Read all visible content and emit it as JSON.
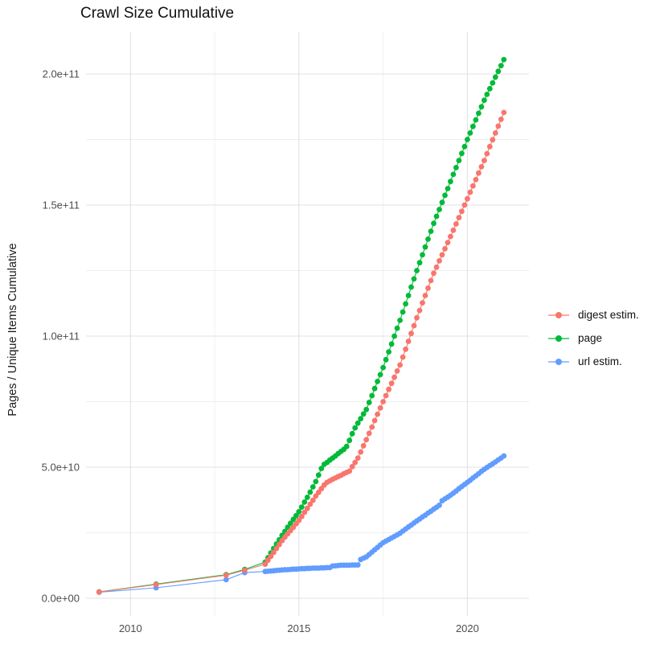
{
  "title": "Crawl Size Cumulative",
  "axes": {
    "x": {
      "tick_labels": [
        "2010",
        "2015",
        "2020"
      ],
      "tick_values": [
        2010,
        2015,
        2020
      ],
      "minor_tick_values": [
        2012.5,
        2017.5
      ]
    },
    "y": {
      "label": "Pages / Unique Items Cumulative",
      "tick_labels": [
        "0.0e+00",
        "5.0e+10",
        "1.0e+11",
        "1.5e+11",
        "2.0e+11"
      ],
      "tick_values_e9": [
        0,
        50,
        100,
        150,
        200
      ],
      "minor_tick_values_e9": [
        25,
        75,
        125,
        175
      ]
    }
  },
  "legend": {
    "items": [
      {
        "label": "digest estim.",
        "color": "#F8766D"
      },
      {
        "label": "page",
        "color": "#00BA38"
      },
      {
        "label": "url estim.",
        "color": "#619CFF"
      }
    ]
  },
  "chart_data": {
    "type": "line",
    "title": "Crawl Size Cumulative",
    "xlabel": "",
    "ylabel": "Pages / Unique Items Cumulative",
    "value_unit": "billions (1e9) of pages / unique items",
    "x_range_years": [
      2009.07,
      2021.08
    ],
    "y_range_e9": [
      0,
      205.5
    ],
    "grid": true,
    "legend_position": "right",
    "series": [
      {
        "name": "digest estim.",
        "color": "#F8766D",
        "sparse_points": [
          [
            2009.07,
            2.4
          ],
          [
            2010.76,
            5.2
          ],
          [
            2012.84,
            8.8
          ],
          [
            2013.39,
            10.7
          ]
        ],
        "monthly": {
          "start_year": 2014.0,
          "step_years": 0.083333,
          "values_e9": [
            13.0,
            14.5,
            16.0,
            17.5,
            19.0,
            20.5,
            22.0,
            23.3,
            24.6,
            25.8,
            27.1,
            28.4,
            29.7,
            31.2,
            32.8,
            34.3,
            35.9,
            37.4,
            39.0,
            40.4,
            41.8,
            43.2,
            44.2,
            44.8,
            45.4,
            45.9,
            46.4,
            46.9,
            47.5,
            48.0,
            48.5,
            50.2,
            51.8,
            53.5,
            55.8,
            58.2,
            60.5,
            62.9,
            65.3,
            67.8,
            70.2,
            72.6,
            75.0,
            77.3,
            79.7,
            82.0,
            84.3,
            86.7,
            89.0,
            92.0,
            95.0,
            98.0,
            101.0,
            104.0,
            107.0,
            109.8,
            112.7,
            115.5,
            118.3,
            121.2,
            124.0,
            126.3,
            128.7,
            131.0,
            133.3,
            135.7,
            138.0,
            140.4,
            142.8,
            145.2,
            147.6,
            150.0,
            152.4,
            154.9,
            157.3,
            159.7,
            162.2,
            164.6,
            167.0,
            169.6,
            172.3,
            174.9,
            177.5,
            180.1,
            182.7,
            185.3
          ]
        }
      },
      {
        "name": "page",
        "color": "#00BA38",
        "sparse_points": [
          [
            2009.07,
            2.45
          ],
          [
            2010.76,
            5.4
          ],
          [
            2012.84,
            9.0
          ],
          [
            2013.39,
            11.0
          ]
        ],
        "monthly": {
          "start_year": 2014.0,
          "step_years": 0.083333,
          "values_e9": [
            13.8,
            15.5,
            17.3,
            19.0,
            20.7,
            22.3,
            24.0,
            25.5,
            27.1,
            28.6,
            30.1,
            31.5,
            33.0,
            34.8,
            36.7,
            38.5,
            40.5,
            42.5,
            44.5,
            47.0,
            49.5,
            51.1,
            51.8,
            52.7,
            53.5,
            54.3,
            55.2,
            56.0,
            56.8,
            57.9,
            60.2,
            62.8,
            65.0,
            66.8,
            68.5,
            70.3,
            72.0,
            74.7,
            77.3,
            80.0,
            82.7,
            85.3,
            88.0,
            91.0,
            94.0,
            97.0,
            100.0,
            103.0,
            106.0,
            109.2,
            112.3,
            115.5,
            118.7,
            121.8,
            125.0,
            128.0,
            131.0,
            134.0,
            137.0,
            140.0,
            143.0,
            145.7,
            148.3,
            151.0,
            153.7,
            156.3,
            159.0,
            161.7,
            164.3,
            167.0,
            169.7,
            172.3,
            175.0,
            177.5,
            180.0,
            182.5,
            185.0,
            187.5,
            190.0,
            192.2,
            194.4,
            196.6,
            198.8,
            201.0,
            203.2,
            205.5
          ]
        }
      },
      {
        "name": "url estim.",
        "color": "#619CFF",
        "sparse_points": [
          [
            2009.07,
            2.3
          ],
          [
            2010.76,
            4.0
          ],
          [
            2012.84,
            7.1
          ],
          [
            2013.39,
            9.8
          ]
        ],
        "monthly": {
          "start_year": 2014.0,
          "step_years": 0.083333,
          "values_e9": [
            10.2,
            10.3,
            10.4,
            10.5,
            10.6,
            10.7,
            10.8,
            10.9,
            10.9,
            11.0,
            11.1,
            11.1,
            11.2,
            11.3,
            11.3,
            11.4,
            11.4,
            11.5,
            11.5,
            11.5,
            11.6,
            11.6,
            11.7,
            11.7,
            12.3,
            12.4,
            12.5,
            12.6,
            12.6,
            12.6,
            12.6,
            12.7,
            12.7,
            12.7,
            14.8,
            15.3,
            15.8,
            16.7,
            17.6,
            18.5,
            19.4,
            20.3,
            21.2,
            21.8,
            22.4,
            23.0,
            23.6,
            24.2,
            24.8,
            25.6,
            26.4,
            27.2,
            27.9,
            28.7,
            29.5,
            30.2,
            31.0,
            31.7,
            32.5,
            33.2,
            34.0,
            34.7,
            35.5,
            37.2,
            37.9,
            38.6,
            39.3,
            40.1,
            40.9,
            41.8,
            42.6,
            43.4,
            44.2,
            45.0,
            45.9,
            46.7,
            47.5,
            48.4,
            49.2,
            49.9,
            50.6,
            51.3,
            52.0,
            52.8,
            53.5,
            54.3
          ]
        }
      }
    ]
  }
}
